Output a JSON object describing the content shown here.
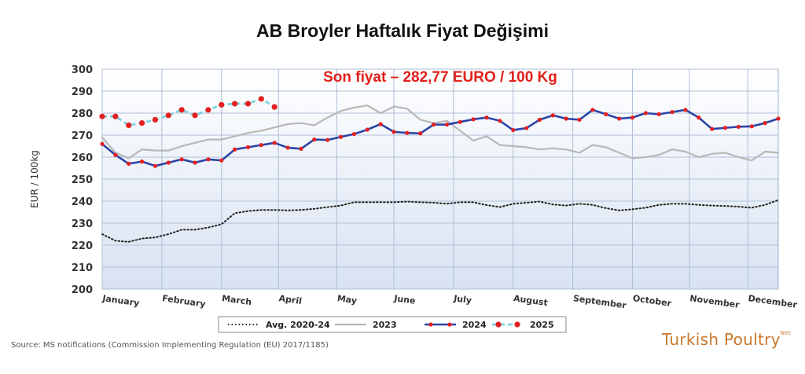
{
  "title": "AB Broyler Haftalık Fiyat Değişimi",
  "source": "Source: MS notifications (Commission Implementing Regulation (EU) 2017/1185)",
  "brand": {
    "name": "Turkish Poultry",
    "suffix": "Net"
  },
  "colors": {
    "title": "#111111",
    "subtitle": "#e0201b",
    "grid": "#aebfd6",
    "plot_bg_top": "#ffffff",
    "plot_bg_bottom": "#d8e2f2"
  },
  "chart_data": {
    "type": "line",
    "subtitle": "Son fiyat – 282,77 EURO / 100 Kg",
    "ylabel": "EUR / 100kg",
    "xlabel": "",
    "ylim": [
      200,
      300
    ],
    "yticks": [
      200,
      210,
      220,
      230,
      240,
      250,
      260,
      270,
      280,
      290,
      300
    ],
    "xlim": [
      1,
      52
    ],
    "x_ticks": [
      {
        "x": 1,
        "label": "January"
      },
      {
        "x": 5.5,
        "label": "February"
      },
      {
        "x": 10,
        "label": "March"
      },
      {
        "x": 14.3,
        "label": "April"
      },
      {
        "x": 18.7,
        "label": "May"
      },
      {
        "x": 23,
        "label": "June"
      },
      {
        "x": 27.5,
        "label": "July"
      },
      {
        "x": 32,
        "label": "August"
      },
      {
        "x": 36.5,
        "label": "September"
      },
      {
        "x": 41,
        "label": "October"
      },
      {
        "x": 45.3,
        "label": "November"
      },
      {
        "x": 49.7,
        "label": "December"
      }
    ],
    "grid": true,
    "legend_position": "bottom",
    "series": [
      {
        "name": "Avg. 2020-24",
        "color": "#222222",
        "style": "dotted",
        "width": 2,
        "markers": false,
        "x": [
          1,
          2,
          3,
          4,
          5,
          6,
          7,
          8,
          9,
          10,
          11,
          12,
          13,
          14,
          15,
          16,
          17,
          18,
          19,
          20,
          21,
          22,
          23,
          24,
          25,
          26,
          27,
          28,
          29,
          30,
          31,
          32,
          33,
          34,
          35,
          36,
          37,
          38,
          39,
          40,
          41,
          42,
          43,
          44,
          45,
          46,
          47,
          48,
          49,
          50,
          51,
          52
        ],
        "values": [
          225,
          222,
          221.5,
          223,
          223.5,
          225,
          227,
          227,
          228,
          229.5,
          234.5,
          235.5,
          236,
          236,
          235.8,
          236,
          236.5,
          237.3,
          238,
          239.5,
          239.5,
          239.5,
          239.5,
          239.8,
          239.5,
          239.3,
          238.8,
          239.5,
          239.5,
          238.2,
          237.3,
          238.8,
          239.3,
          239.8,
          238.5,
          238,
          238.8,
          238.3,
          236.8,
          235.8,
          236.3,
          237,
          238.3,
          238.8,
          238.8,
          238.3,
          238,
          237.8,
          237.5,
          237,
          238.3,
          240.5
        ]
      },
      {
        "name": "2023",
        "color": "#b8b8b8",
        "style": "solid",
        "width": 2.2,
        "markers": false,
        "x": [
          1,
          2,
          3,
          4,
          5,
          6,
          7,
          8,
          9,
          10,
          11,
          12,
          13,
          14,
          15,
          16,
          17,
          18,
          19,
          20,
          21,
          22,
          23,
          24,
          25,
          26,
          27,
          28,
          29,
          30,
          31,
          32,
          33,
          34,
          35,
          36,
          37,
          38,
          39,
          40,
          41,
          42,
          43,
          44,
          45,
          46,
          47,
          48,
          49,
          50,
          51,
          52
        ],
        "values": [
          269,
          262,
          259.5,
          263.5,
          263,
          263,
          265,
          266.5,
          268,
          268,
          269.5,
          271,
          272,
          273.5,
          275,
          275.5,
          274.5,
          278,
          281,
          282.5,
          283.5,
          280,
          283,
          282,
          277,
          275.5,
          276.5,
          272,
          267.5,
          269.5,
          265.5,
          265,
          264.5,
          263.5,
          264,
          263.5,
          262,
          265.5,
          264.5,
          262,
          259.5,
          260,
          261,
          263.5,
          262.5,
          260,
          261.5,
          262,
          260,
          258.5,
          262.5,
          262
        ]
      },
      {
        "name": "2024",
        "color": "#2a44a8",
        "style": "solid",
        "width": 2.6,
        "markers": true,
        "marker_color": "#e52020",
        "marker_size": 2.6,
        "x": [
          1,
          2,
          3,
          4,
          5,
          6,
          7,
          8,
          9,
          10,
          11,
          12,
          13,
          14,
          15,
          16,
          17,
          18,
          19,
          20,
          21,
          22,
          23,
          24,
          25,
          26,
          27,
          28,
          29,
          30,
          31,
          32,
          33,
          34,
          35,
          36,
          37,
          38,
          39,
          40,
          41,
          42,
          43,
          44,
          45,
          46,
          47,
          48,
          49,
          50,
          51,
          52
        ],
        "values": [
          266,
          261,
          257,
          258,
          256,
          257.5,
          259,
          257.5,
          259,
          258.5,
          263.5,
          264.5,
          265.5,
          266.5,
          264.3,
          263.8,
          268,
          267.8,
          269.2,
          270.5,
          272.5,
          275,
          271.5,
          271,
          270.8,
          274.8,
          274.8,
          276,
          277.2,
          278,
          276.5,
          272.3,
          273.2,
          277,
          279,
          277.5,
          277,
          281.5,
          279.5,
          277.5,
          278,
          280,
          279.5,
          280.5,
          281.5,
          278,
          272.8,
          273.3,
          273.8,
          274,
          275.5,
          277.5
        ]
      },
      {
        "name": "2025",
        "color": "#7dd3e0",
        "style": "dashed",
        "width": 2.8,
        "markers": true,
        "marker_color": "#e52020",
        "marker_size": 3.6,
        "x": [
          1,
          2,
          3,
          4,
          5,
          6,
          7,
          8,
          9,
          10,
          11,
          12,
          13,
          14
        ],
        "values": [
          278.5,
          278.5,
          274.5,
          275.5,
          277,
          279,
          281.5,
          279,
          281.5,
          283.8,
          284.3,
          284.3,
          286.5,
          282.8
        ]
      }
    ]
  }
}
